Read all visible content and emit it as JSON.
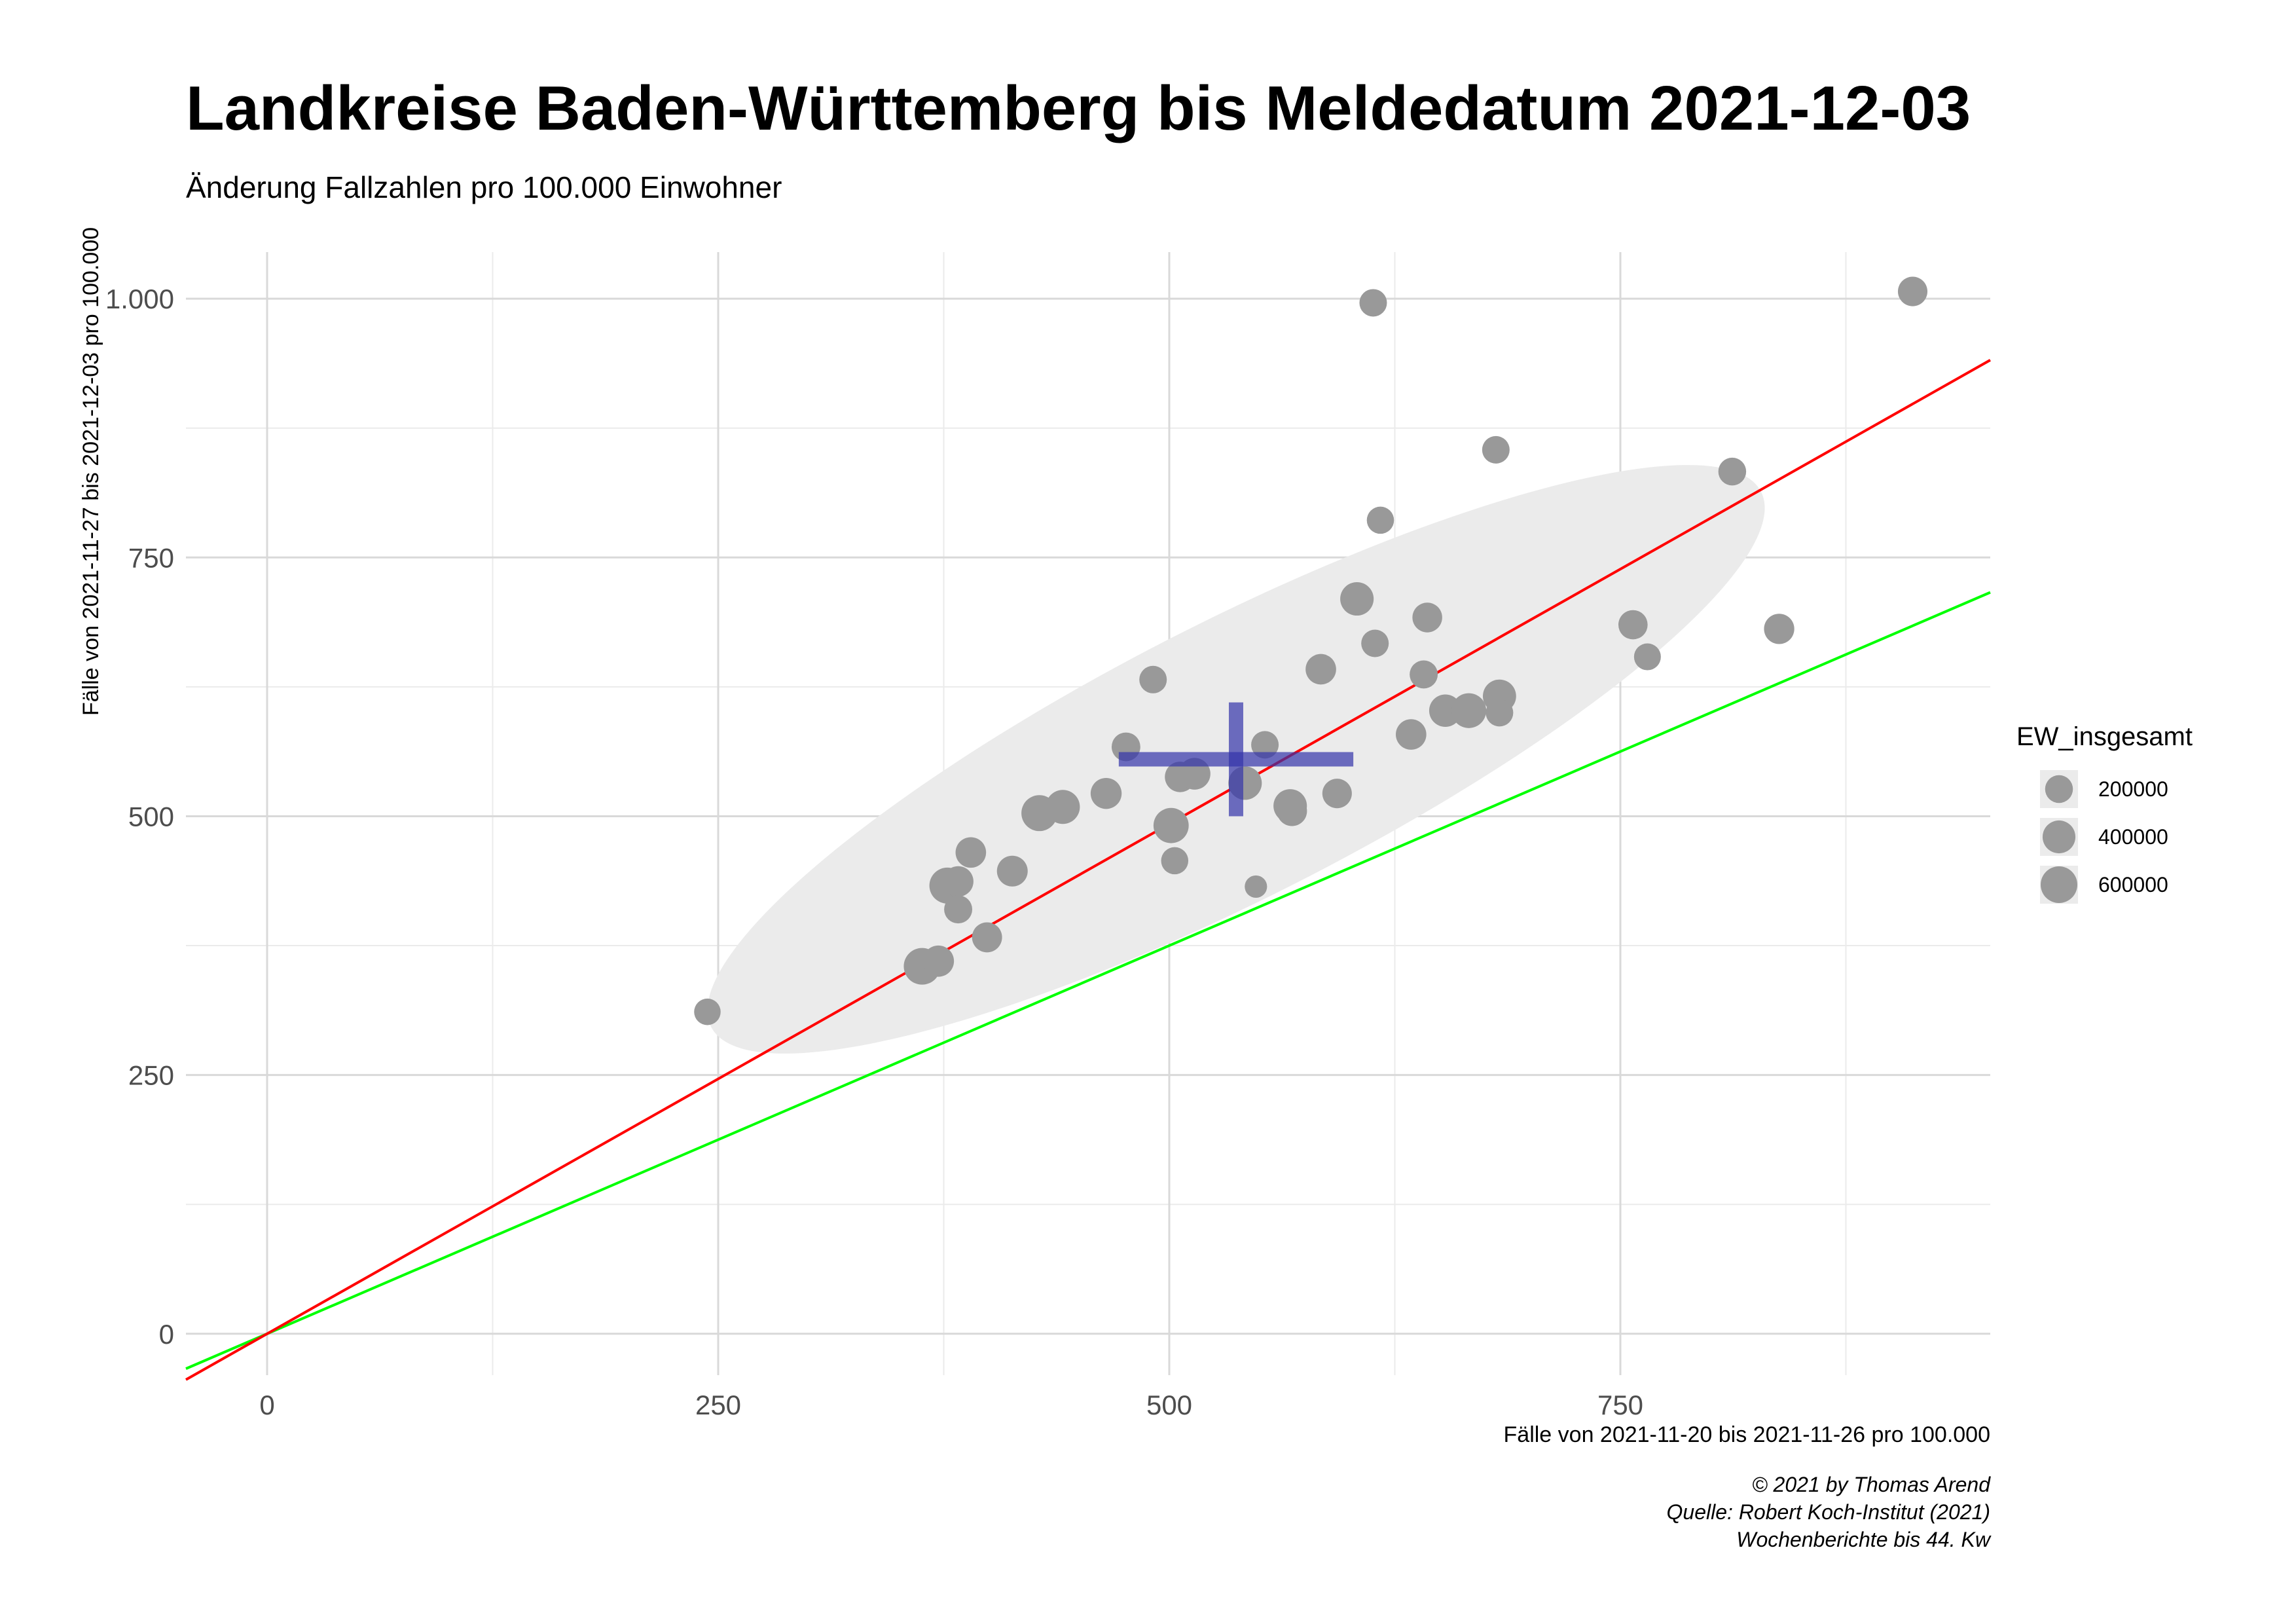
{
  "title": "Landkreise Baden-Württemberg bis Meldedatum 2021-12-03",
  "subtitle": "Änderung Fallzahlen pro 100.000 Einwohner",
  "caption": [
    "© 2021 by Thomas Arend",
    "Quelle: Robert Koch-Institut (2021)",
    "Wochenberichte bis 44. Kw"
  ],
  "chart_data": {
    "type": "scatter",
    "xlabel": "Fälle von 2021-11-20 bis 2021-11-26 pro 100.000",
    "ylabel": "Fälle von 2021-11-27 bis 2021-12-03 pro 100.000",
    "xlim": [
      -45,
      955
    ],
    "ylim": [
      -40,
      1045
    ],
    "x_ticks": [
      0,
      250,
      500,
      750
    ],
    "x_tick_labels": [
      "0",
      "250",
      "500",
      "750"
    ],
    "y_ticks": [
      0,
      250,
      500,
      750,
      1000
    ],
    "y_tick_labels": [
      "0",
      "250",
      "500",
      "750",
      "1.000"
    ],
    "grid": true,
    "point_color": "#999999",
    "size_legend": {
      "title": "EW_insgesamt",
      "values": [
        200000,
        400000,
        600000
      ],
      "labels": [
        "200000",
        "400000",
        "600000"
      ]
    },
    "points": [
      {
        "x": 244,
        "y": 311,
        "size": 160000
      },
      {
        "x": 363,
        "y": 355,
        "size": 600000
      },
      {
        "x": 372,
        "y": 360,
        "size": 330000
      },
      {
        "x": 377,
        "y": 433,
        "size": 560000
      },
      {
        "x": 383,
        "y": 437,
        "size": 300000
      },
      {
        "x": 383,
        "y": 410,
        "size": 210000
      },
      {
        "x": 390,
        "y": 465,
        "size": 300000
      },
      {
        "x": 399,
        "y": 383,
        "size": 280000
      },
      {
        "x": 413,
        "y": 447,
        "size": 310000
      },
      {
        "x": 428,
        "y": 503,
        "size": 560000
      },
      {
        "x": 441,
        "y": 509,
        "size": 460000
      },
      {
        "x": 465,
        "y": 522,
        "size": 320000
      },
      {
        "x": 476,
        "y": 567,
        "size": 230000
      },
      {
        "x": 491,
        "y": 632,
        "size": 190000
      },
      {
        "x": 501,
        "y": 491,
        "size": 520000
      },
      {
        "x": 503,
        "y": 457,
        "size": 180000
      },
      {
        "x": 506,
        "y": 538,
        "size": 300000
      },
      {
        "x": 514,
        "y": 541,
        "size": 350000
      },
      {
        "x": 542,
        "y": 532,
        "size": 430000
      },
      {
        "x": 548,
        "y": 432,
        "size": 60000
      },
      {
        "x": 553,
        "y": 569,
        "size": 190000
      },
      {
        "x": 567,
        "y": 510,
        "size": 430000
      },
      {
        "x": 568,
        "y": 505,
        "size": 280000
      },
      {
        "x": 584,
        "y": 642,
        "size": 300000
      },
      {
        "x": 593,
        "y": 522,
        "size": 260000
      },
      {
        "x": 604,
        "y": 710,
        "size": 430000
      },
      {
        "x": 613,
        "y": 996,
        "size": 190000
      },
      {
        "x": 614,
        "y": 667,
        "size": 190000
      },
      {
        "x": 617,
        "y": 786,
        "size": 180000
      },
      {
        "x": 634,
        "y": 579,
        "size": 300000
      },
      {
        "x": 641,
        "y": 637,
        "size": 210000
      },
      {
        "x": 643,
        "y": 692,
        "size": 270000
      },
      {
        "x": 653,
        "y": 602,
        "size": 380000
      },
      {
        "x": 666,
        "y": 602,
        "size": 500000
      },
      {
        "x": 681,
        "y": 854,
        "size": 190000
      },
      {
        "x": 683,
        "y": 616,
        "size": 420000
      },
      {
        "x": 683,
        "y": 600,
        "size": 190000
      },
      {
        "x": 757,
        "y": 685,
        "size": 250000
      },
      {
        "x": 765,
        "y": 654,
        "size": 170000
      },
      {
        "x": 812,
        "y": 833,
        "size": 200000
      },
      {
        "x": 838,
        "y": 681,
        "size": 290000
      },
      {
        "x": 912,
        "y": 1007,
        "size": 260000
      }
    ],
    "mean": {
      "x": 537,
      "y": 555
    },
    "mean_cross_color": "#3333aa",
    "confidence_ellipse_color": "#ebebeb",
    "regression_line": {
      "color": "#ff0000",
      "slope": 0.985,
      "intercept": 0
    },
    "reference_line": {
      "color": "#00ff00",
      "slope": 0.75,
      "intercept": 0
    }
  }
}
